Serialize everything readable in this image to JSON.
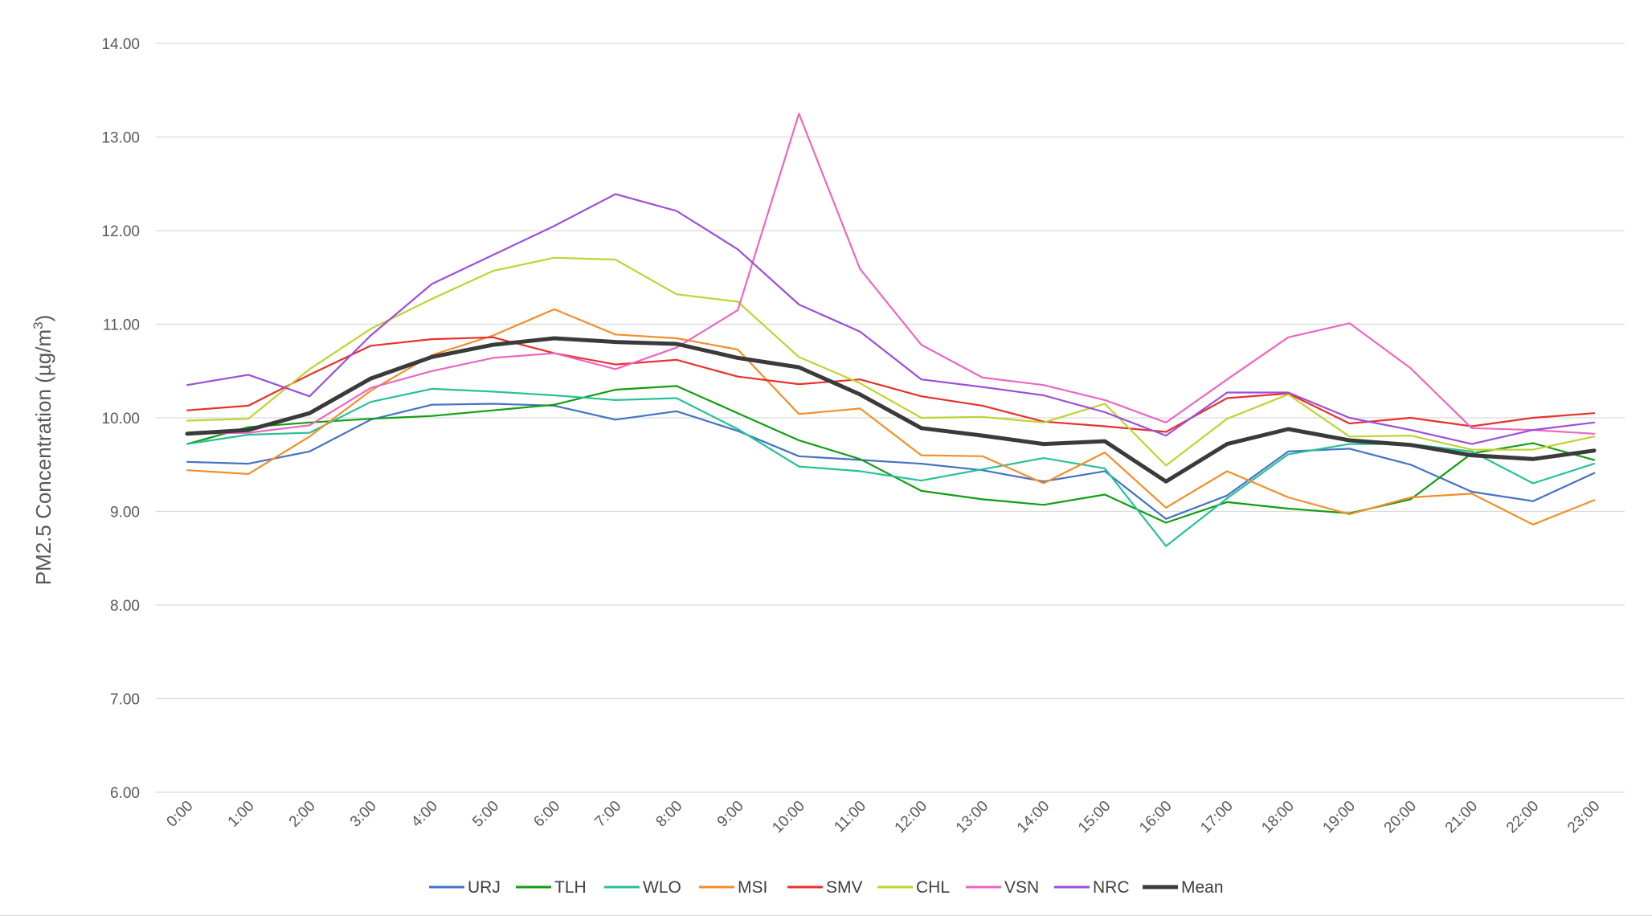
{
  "chart_data": {
    "type": "line",
    "title": "",
    "xlabel": "",
    "ylabel_main": "PM2.5 Concentration (µg/m",
    "ylabel_sup": "3",
    "ylabel_close": ")",
    "ylim": [
      6,
      14
    ],
    "yticks": [
      "6.00",
      "7.00",
      "8.00",
      "9.00",
      "10.00",
      "11.00",
      "12.00",
      "13.00",
      "14.00"
    ],
    "ytick_values": [
      6,
      7,
      8,
      9,
      10,
      11,
      12,
      13,
      14
    ],
    "grid": true,
    "legend_position": "bottom",
    "categories": [
      "0:00",
      "1:00",
      "2:00",
      "3:00",
      "4:00",
      "5:00",
      "6:00",
      "7:00",
      "8:00",
      "9:00",
      "10:00",
      "11:00",
      "12:00",
      "13:00",
      "14:00",
      "15:00",
      "16:00",
      "17:00",
      "18:00",
      "19:00",
      "20:00",
      "21:00",
      "22:00",
      "23:00"
    ],
    "series": [
      {
        "name": "URJ",
        "color": "#4472C4",
        "width": 2.2,
        "values": [
          9.53,
          9.51,
          9.64,
          9.98,
          10.14,
          10.15,
          10.13,
          9.98,
          10.07,
          9.86,
          9.59,
          9.55,
          9.51,
          9.44,
          9.32,
          9.43,
          8.92,
          9.17,
          9.64,
          9.67,
          9.5,
          9.21,
          9.11,
          9.41
        ]
      },
      {
        "name": "TLH",
        "color": "#119E11",
        "width": 2.2,
        "values": [
          9.72,
          9.9,
          9.95,
          9.99,
          10.02,
          10.08,
          10.14,
          10.3,
          10.34,
          10.05,
          9.76,
          9.56,
          9.22,
          9.13,
          9.07,
          9.18,
          8.88,
          9.1,
          9.03,
          8.98,
          9.13,
          9.62,
          9.73,
          9.55
        ]
      },
      {
        "name": "WLO",
        "color": "#26C19A",
        "width": 2.2,
        "values": [
          9.72,
          9.82,
          9.84,
          10.17,
          10.31,
          10.28,
          10.24,
          10.19,
          10.21,
          9.88,
          9.48,
          9.43,
          9.33,
          9.45,
          9.57,
          9.46,
          8.63,
          9.14,
          9.61,
          9.72,
          9.72,
          9.64,
          9.3,
          9.51
        ]
      },
      {
        "name": "MSI",
        "color": "#F28E2B",
        "width": 2.2,
        "values": [
          9.44,
          9.4,
          9.8,
          10.29,
          10.67,
          10.88,
          11.16,
          10.89,
          10.85,
          10.73,
          10.04,
          10.1,
          9.6,
          9.59,
          9.3,
          9.63,
          9.04,
          9.43,
          9.15,
          8.97,
          9.15,
          9.19,
          8.86,
          9.12
        ]
      },
      {
        "name": "SMV",
        "color": "#E8302C",
        "width": 2.2,
        "values": [
          10.08,
          10.13,
          10.46,
          10.77,
          10.84,
          10.86,
          10.69,
          10.57,
          10.62,
          10.44,
          10.36,
          10.41,
          10.23,
          10.13,
          9.96,
          9.91,
          9.85,
          10.21,
          10.26,
          9.94,
          10.0,
          9.91,
          10.0,
          10.05
        ]
      },
      {
        "name": "CHL",
        "color": "#BFD330",
        "width": 2.2,
        "values": [
          9.97,
          9.99,
          10.52,
          10.95,
          11.27,
          11.57,
          11.71,
          11.69,
          11.32,
          11.24,
          10.65,
          10.37,
          10.0,
          10.01,
          9.95,
          10.15,
          9.49,
          9.99,
          10.25,
          9.8,
          9.81,
          9.66,
          9.66,
          9.8
        ]
      },
      {
        "name": "VSN",
        "color": "#EC66C3",
        "width": 2.2,
        "values": [
          9.83,
          9.84,
          9.92,
          10.32,
          10.5,
          10.64,
          10.69,
          10.52,
          10.75,
          11.15,
          13.25,
          11.59,
          10.78,
          10.43,
          10.35,
          10.19,
          9.95,
          10.41,
          10.86,
          11.01,
          10.53,
          9.89,
          9.87,
          9.83
        ]
      },
      {
        "name": "NRC",
        "color": "#9B4FDB",
        "width": 2.2,
        "values": [
          10.35,
          10.46,
          10.23,
          10.88,
          11.43,
          11.74,
          12.05,
          12.39,
          12.21,
          11.8,
          11.21,
          10.92,
          10.41,
          10.33,
          10.24,
          10.06,
          9.81,
          10.27,
          10.27,
          10.0,
          9.87,
          9.72,
          9.87,
          9.95
        ]
      },
      {
        "name": "Mean",
        "color": "#3A3A3A",
        "width": 5,
        "values": [
          9.83,
          9.87,
          10.05,
          10.42,
          10.65,
          10.78,
          10.85,
          10.81,
          10.79,
          10.64,
          10.54,
          10.25,
          9.89,
          9.81,
          9.72,
          9.75,
          9.32,
          9.72,
          9.88,
          9.76,
          9.71,
          9.6,
          9.56,
          9.65
        ]
      }
    ]
  }
}
